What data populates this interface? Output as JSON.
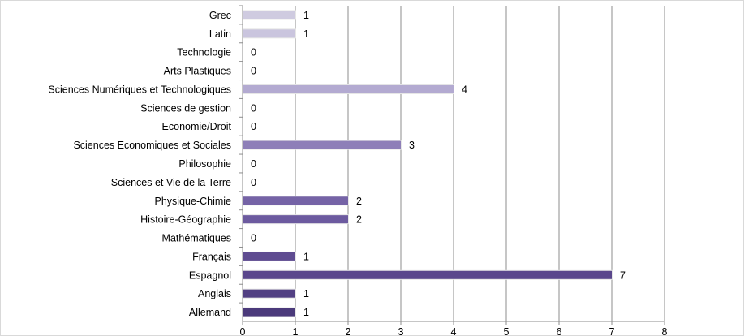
{
  "chart_data": {
    "type": "bar",
    "orientation": "horizontal",
    "categories": [
      "Grec",
      "Latin",
      "Technologie",
      "Arts Plastiques",
      "Sciences Numériques et Technologiques",
      "Sciences de gestion",
      "Economie/Droit",
      "Sciences Economiques et Sociales",
      "Philosophie",
      "Sciences et Vie de la Terre",
      "Physique-Chimie",
      "Histoire-Géographie",
      "Mathématiques",
      "Français",
      "Espagnol",
      "Anglais",
      "Allemand"
    ],
    "values": [
      1,
      1,
      0,
      0,
      4,
      0,
      0,
      3,
      0,
      0,
      2,
      2,
      0,
      1,
      7,
      1,
      1
    ],
    "bar_colors": [
      "#cfcbe0",
      "#cac5de",
      "#c3bddb",
      "#bdb5d6",
      "#b3aad1",
      "#a89dca",
      "#9e91c3",
      "#8e7fb8",
      "#8574b1",
      "#7d6aab",
      "#7563a6",
      "#6c5a9f",
      "#665297",
      "#5f4c91",
      "#5a478c",
      "#524083",
      "#4b3a7b"
    ],
    "xlim": [
      0,
      8
    ],
    "xticks": [
      "0",
      "1",
      "2",
      "3",
      "4",
      "5",
      "6",
      "7",
      "8"
    ],
    "grid": true,
    "data_labels": true,
    "title": "",
    "xlabel": "",
    "ylabel": ""
  }
}
